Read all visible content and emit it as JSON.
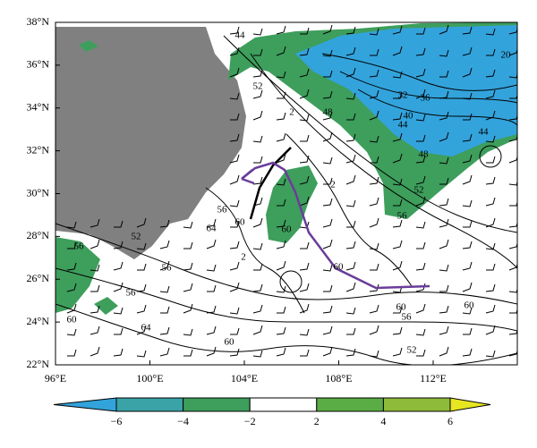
{
  "map": {
    "lat_labels": [
      "22°N",
      "24°N",
      "26°N",
      "28°N",
      "30°N",
      "32°N",
      "34°N",
      "36°N",
      "38°N"
    ],
    "lon_labels": [
      "96°E",
      "100°E",
      "104°E",
      "108°E",
      "112°E"
    ],
    "contour_labels": [
      "44",
      "52",
      "48",
      "2",
      "20",
      "32",
      "36",
      "40",
      "44",
      "44",
      "48",
      "52",
      "56",
      "56",
      "60",
      "64",
      "60",
      "2",
      "52",
      "56",
      "56",
      "56",
      "2",
      "60",
      "64",
      "60",
      "60",
      "60",
      "56",
      "52",
      "60"
    ],
    "colorbar_labels": [
      "−6",
      "−4",
      "−2",
      "2",
      "4",
      "6"
    ]
  }
}
